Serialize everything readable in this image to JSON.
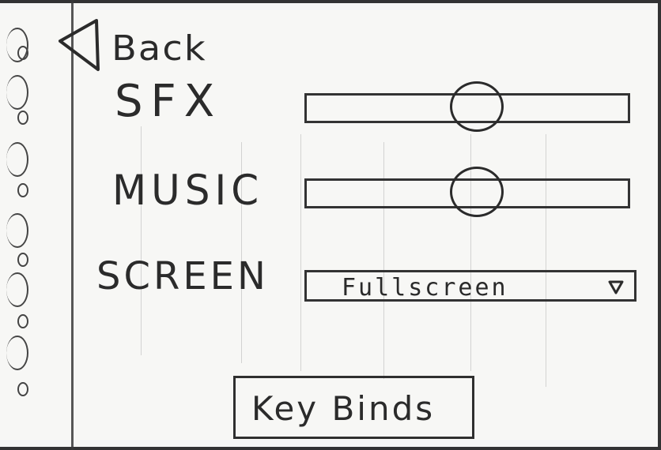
{
  "menu": {
    "back_label": "Back",
    "sfx_label": "SFX",
    "music_label": "MUSIC",
    "screen_label": "SCREEN",
    "screen_mode": "Fullscreen",
    "keybinds_label": "Key Binds",
    "sfx_volume": 0.53,
    "music_volume": 0.53
  },
  "icons": {
    "back": "triangle-left-icon",
    "dropdown": "triangle-down-icon"
  },
  "colors": {
    "ink": "#2b2b2b",
    "paper": "#f7f7f5"
  }
}
